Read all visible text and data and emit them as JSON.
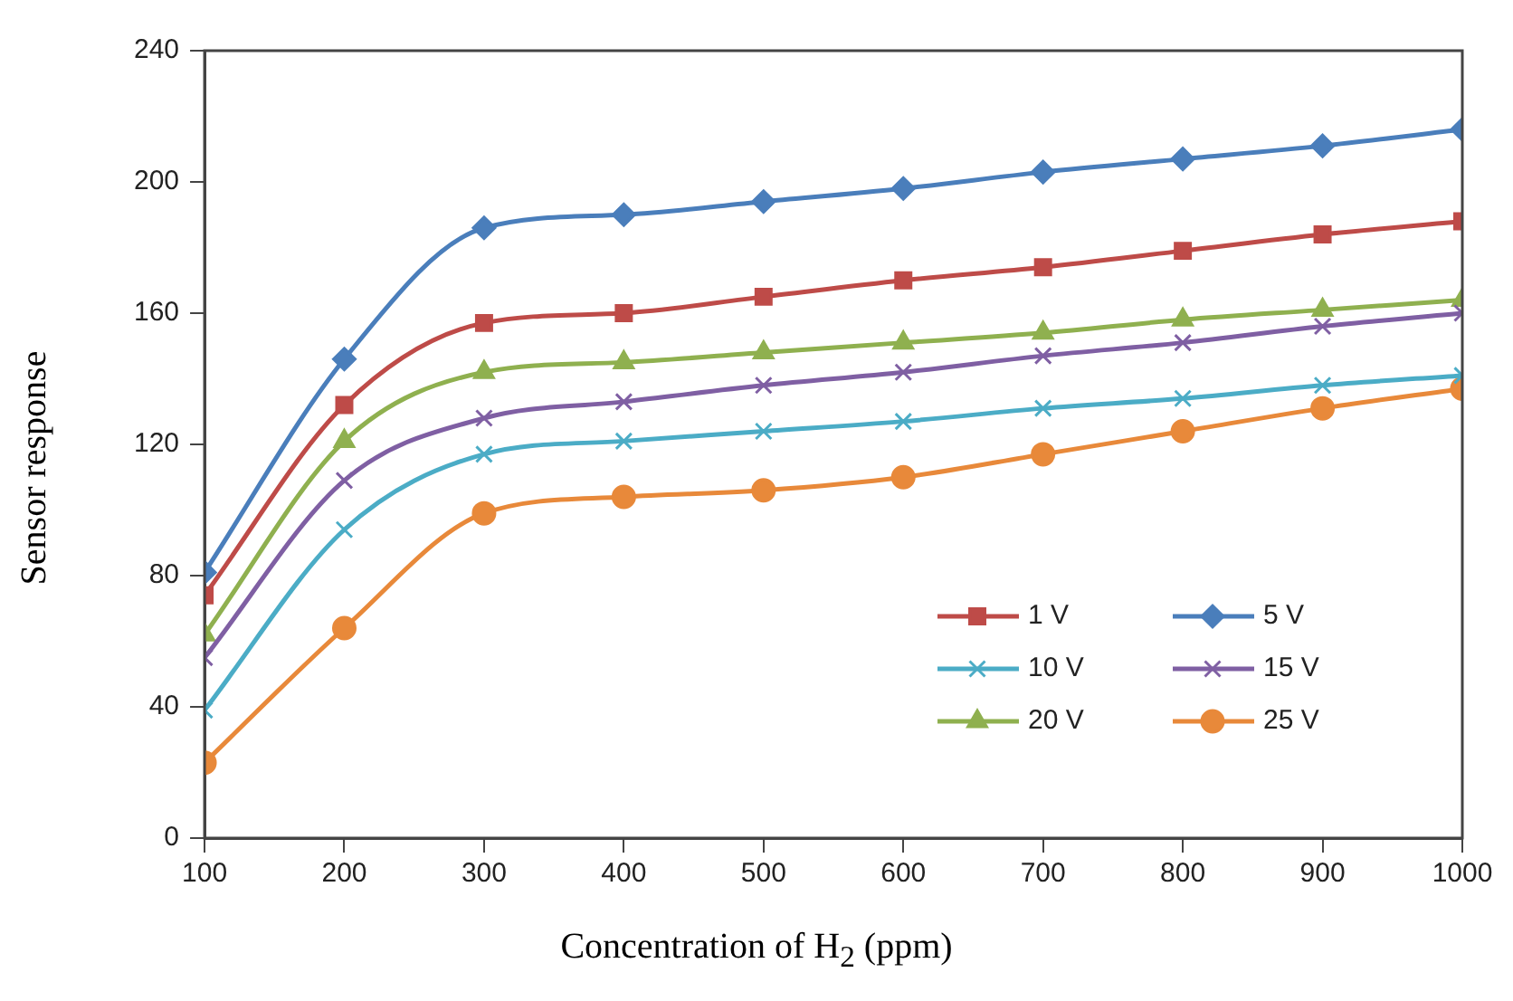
{
  "chart_data": {
    "type": "line",
    "xlabel": "Concentration of H$_{2}$ (ppm)",
    "ylabel": "Sensor response",
    "x": [
      100,
      200,
      300,
      400,
      500,
      600,
      700,
      800,
      900,
      1000
    ],
    "xlim": [
      100,
      1000
    ],
    "xticks": [
      100,
      200,
      300,
      400,
      500,
      600,
      700,
      800,
      900,
      1000
    ],
    "ylim": [
      0,
      240
    ],
    "yticks": [
      0,
      40,
      80,
      120,
      160,
      200,
      240
    ],
    "grid": false,
    "legend": "bottom right",
    "line_style": "solid",
    "series": [
      {
        "name": "1 V",
        "color": "#be4b48",
        "marker": "square",
        "values": [
          74,
          132,
          157,
          160,
          165,
          170,
          174,
          179,
          184,
          188
        ]
      },
      {
        "name": "5 V",
        "color": "#4a7ebb",
        "marker": "diamond",
        "values": [
          81,
          146,
          186,
          190,
          194,
          198,
          203,
          207,
          211,
          216
        ]
      },
      {
        "name": "10 V",
        "color": "#4bacc6",
        "marker": "cross",
        "values": [
          39,
          94,
          117,
          121,
          124,
          127,
          131,
          134,
          138,
          141
        ]
      },
      {
        "name": "15 V",
        "color": "#7f5fa3",
        "marker": "cross",
        "values": [
          55,
          109,
          128,
          133,
          138,
          142,
          147,
          151,
          156,
          160
        ]
      },
      {
        "name": "20 V",
        "color": "#8fb04f",
        "marker": "triangle",
        "values": [
          62,
          121,
          142,
          145,
          148,
          151,
          154,
          158,
          161,
          164
        ]
      },
      {
        "name": "25 V",
        "color": "#e8893a",
        "marker": "circle",
        "values": [
          23,
          64,
          99,
          104,
          106,
          110,
          117,
          124,
          131,
          137
        ]
      }
    ]
  }
}
